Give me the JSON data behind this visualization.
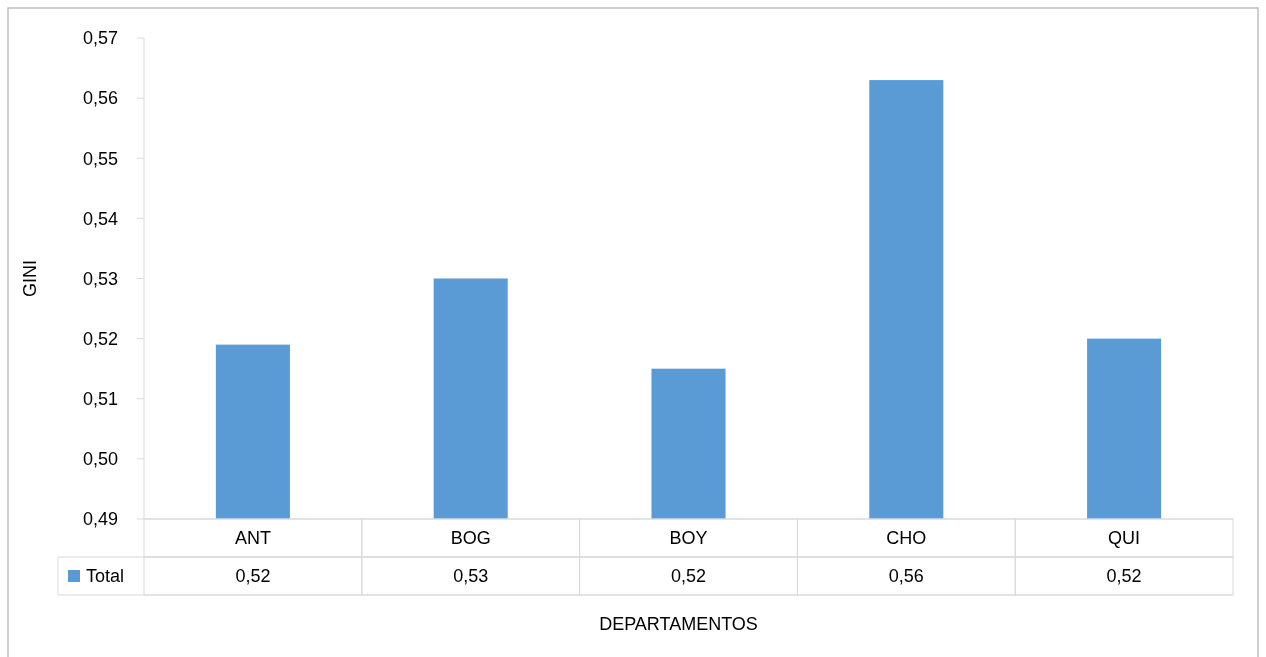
{
  "chart_data": {
    "type": "bar",
    "xlabel": "DEPARTAMENTOS",
    "ylabel": "GINI",
    "categories": [
      "ANT",
      "BOG",
      "BOY",
      "CHO",
      "QUI"
    ],
    "series": [
      {
        "name": "Total",
        "color": "#5b9bd5",
        "values": [
          0.519,
          0.53,
          0.515,
          0.563,
          0.52
        ],
        "value_labels": [
          "0,52",
          "0,53",
          "0,52",
          "0,56",
          "0,52"
        ]
      }
    ],
    "ylim": [
      0.49,
      0.57
    ],
    "yticks": [
      {
        "value": 0.49,
        "label": "0,49"
      },
      {
        "value": 0.5,
        "label": "0,50"
      },
      {
        "value": 0.51,
        "label": "0,51"
      },
      {
        "value": 0.52,
        "label": "0,52"
      },
      {
        "value": 0.53,
        "label": "0,53"
      },
      {
        "value": 0.54,
        "label": "0,54"
      },
      {
        "value": 0.55,
        "label": "0,55"
      },
      {
        "value": 0.56,
        "label": "0,56"
      },
      {
        "value": 0.57,
        "label": "0,57"
      }
    ],
    "grid": false
  }
}
